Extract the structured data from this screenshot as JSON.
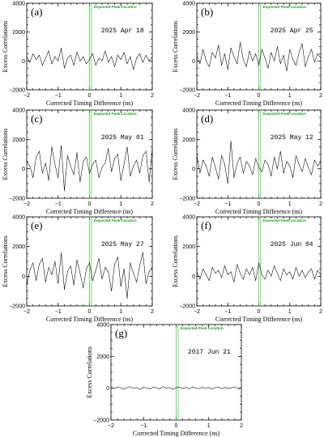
{
  "chart_data": [
    {
      "type": "line",
      "panel": "(a)",
      "date": "2025 Apr 18",
      "xlabel": "Corrected Timing Difference (ns)",
      "ylabel": "Excess Correlations",
      "xlim": [
        -2,
        2
      ],
      "ylim": [
        -2000,
        4000
      ],
      "xticks": [
        -2,
        -1,
        0,
        1,
        2
      ],
      "yticks": [
        -2000,
        0,
        2000,
        4000
      ],
      "annotation": "Expected Peak Location",
      "peak_x": [
        0.0,
        0.06
      ],
      "x": [
        -2.0,
        -1.9,
        -1.8,
        -1.7,
        -1.6,
        -1.5,
        -1.4,
        -1.3,
        -1.2,
        -1.1,
        -1.0,
        -0.9,
        -0.8,
        -0.7,
        -0.6,
        -0.5,
        -0.4,
        -0.3,
        -0.2,
        -0.1,
        0.0,
        0.1,
        0.2,
        0.3,
        0.4,
        0.5,
        0.6,
        0.7,
        0.8,
        0.9,
        1.0,
        1.1,
        1.2,
        1.3,
        1.4,
        1.5,
        1.6,
        1.7,
        1.8,
        1.9,
        2.0
      ],
      "y": [
        300,
        -100,
        500,
        100,
        400,
        -300,
        200,
        700,
        -200,
        300,
        0,
        900,
        -500,
        200,
        400,
        -300,
        600,
        0,
        300,
        -200,
        100,
        500,
        -300,
        200,
        0,
        700,
        -100,
        300,
        -400,
        400,
        100,
        600,
        -200,
        300,
        -600,
        200,
        500,
        -100,
        400,
        0,
        300
      ]
    },
    {
      "type": "line",
      "panel": "(b)",
      "date": "2025 Apr 25",
      "xlabel": "Corrected Timing Difference (ns)",
      "ylabel": "Excess Correlations",
      "xlim": [
        -2,
        2
      ],
      "ylim": [
        -2000,
        4000
      ],
      "xticks": [
        -2,
        -1,
        0,
        1,
        2
      ],
      "yticks": [
        -2000,
        0,
        2000,
        4000
      ],
      "annotation": "Expected Peak Location",
      "peak_x": [
        0.0,
        0.06
      ],
      "x": [
        -2.0,
        -1.9,
        -1.8,
        -1.7,
        -1.6,
        -1.5,
        -1.4,
        -1.3,
        -1.2,
        -1.1,
        -1.0,
        -0.9,
        -0.8,
        -0.7,
        -0.6,
        -0.5,
        -0.4,
        -0.3,
        -0.2,
        -0.1,
        0.0,
        0.1,
        0.2,
        0.3,
        0.4,
        0.5,
        0.6,
        0.7,
        0.8,
        0.9,
        1.0,
        1.1,
        1.2,
        1.3,
        1.4,
        1.5,
        1.6,
        1.7,
        1.8,
        1.9,
        2.0
      ],
      "y": [
        400,
        -200,
        800,
        0,
        -400,
        600,
        200,
        1100,
        -300,
        500,
        -600,
        900,
        300,
        -200,
        1300,
        100,
        -400,
        700,
        0,
        500,
        -300,
        800,
        200,
        -500,
        600,
        0,
        1000,
        -200,
        400,
        -700,
        800,
        100,
        -300,
        600,
        1200,
        -400,
        300,
        800,
        -100,
        500,
        200
      ]
    },
    {
      "type": "line",
      "panel": "(c)",
      "date": "2025 May 01",
      "xlabel": "Corrected Timing Difference (ns)",
      "ylabel": "Excess Correlations",
      "xlim": [
        -2,
        2
      ],
      "ylim": [
        -2000,
        4000
      ],
      "xticks": [
        -2,
        -1,
        0,
        1,
        2
      ],
      "yticks": [
        -2000,
        0,
        2000,
        4000
      ],
      "annotation": "Expected Peak Location",
      "peak_x": [
        0.0,
        0.06
      ],
      "x": [
        -2.0,
        -1.9,
        -1.8,
        -1.7,
        -1.6,
        -1.5,
        -1.4,
        -1.3,
        -1.2,
        -1.1,
        -1.0,
        -0.9,
        -0.8,
        -0.7,
        -0.6,
        -0.5,
        -0.4,
        -0.3,
        -0.2,
        -0.1,
        0.0,
        0.1,
        0.2,
        0.3,
        0.4,
        0.5,
        0.6,
        0.7,
        0.8,
        0.9,
        1.0,
        1.1,
        1.2,
        1.3,
        1.4,
        1.5,
        1.6,
        1.7,
        1.8,
        1.9,
        2.0
      ],
      "y": [
        500,
        200,
        -600,
        800,
        1200,
        -300,
        400,
        -800,
        1500,
        300,
        -600,
        1600,
        -1500,
        900,
        200,
        -400,
        1100,
        -900,
        500,
        800,
        -300,
        300,
        600,
        -600,
        100,
        400,
        1400,
        -200,
        700,
        1000,
        -800,
        300,
        1500,
        -500,
        200,
        600,
        -300,
        900,
        1200,
        -900,
        1400
      ]
    },
    {
      "type": "line",
      "panel": "(d)",
      "date": "2025 May 12",
      "xlabel": "Corrected Timing Difference (ns)",
      "ylabel": "Excess Correlations",
      "xlim": [
        -2,
        2
      ],
      "ylim": [
        -2000,
        4000
      ],
      "xticks": [
        -2,
        -1,
        0,
        1,
        2
      ],
      "yticks": [
        -2000,
        0,
        2000,
        4000
      ],
      "annotation": "Expected Peak Location",
      "peak_x": [
        0.0,
        0.06
      ],
      "x": [
        -2.0,
        -1.9,
        -1.8,
        -1.7,
        -1.6,
        -1.5,
        -1.4,
        -1.3,
        -1.2,
        -1.1,
        -1.0,
        -0.9,
        -0.8,
        -0.7,
        -0.6,
        -0.5,
        -0.4,
        -0.3,
        -0.2,
        -0.1,
        0.0,
        0.1,
        0.2,
        0.3,
        0.4,
        0.5,
        0.6,
        0.7,
        0.8,
        0.9,
        1.0,
        1.1,
        1.2,
        1.3,
        1.4,
        1.5,
        1.6,
        1.7,
        1.8,
        1.9,
        2.0
      ],
      "y": [
        1000,
        -300,
        600,
        200,
        -500,
        800,
        100,
        -700,
        900,
        300,
        -1000,
        1900,
        -600,
        400,
        800,
        -300,
        500,
        200,
        -400,
        700,
        100,
        -200,
        600,
        300,
        -500,
        800,
        0,
        1200,
        -300,
        500,
        200,
        -600,
        900,
        300,
        -200,
        700,
        100,
        -400,
        600,
        200,
        500
      ]
    },
    {
      "type": "line",
      "panel": "(e)",
      "date": "2025 May 27",
      "xlabel": "Corrected Timing Difference (ns)",
      "ylabel": "Excess Correlations",
      "xlim": [
        -2,
        2
      ],
      "ylim": [
        -2000,
        4000
      ],
      "xticks": [
        -2,
        -1,
        0,
        1,
        2
      ],
      "yticks": [
        -2000,
        0,
        2000,
        4000
      ],
      "annotation": "Expected Peak Location",
      "peak_x": [
        0.0,
        0.06
      ],
      "x": [
        -2.0,
        -1.9,
        -1.8,
        -1.7,
        -1.6,
        -1.5,
        -1.4,
        -1.3,
        -1.2,
        -1.1,
        -1.0,
        -0.9,
        -0.8,
        -0.7,
        -0.6,
        -0.5,
        -0.4,
        -0.3,
        -0.2,
        -0.1,
        0.0,
        0.1,
        0.2,
        0.3,
        0.4,
        0.5,
        0.6,
        0.7,
        0.8,
        0.9,
        1.0,
        1.1,
        1.2,
        1.3,
        1.4,
        1.5,
        1.6,
        1.7,
        1.8,
        1.9,
        2.0
      ],
      "y": [
        -600,
        400,
        900,
        -300,
        800,
        1200,
        -400,
        600,
        100,
        1000,
        -500,
        1600,
        -900,
        300,
        700,
        -600,
        1100,
        200,
        -800,
        500,
        900,
        -300,
        400,
        1200,
        -200,
        600,
        300,
        -1000,
        800,
        1300,
        -700,
        500,
        -1500,
        900,
        200,
        -400,
        700,
        1600,
        -500,
        300,
        600
      ]
    },
    {
      "type": "line",
      "panel": "(f)",
      "date": "2025 Jun 04",
      "xlabel": "Corrected Timing Difference (ns)",
      "ylabel": "Excess Correlations",
      "xlim": [
        -2,
        2
      ],
      "ylim": [
        -2000,
        4000
      ],
      "xticks": [
        -2,
        -1,
        0,
        1,
        2
      ],
      "yticks": [
        -2000,
        0,
        2000,
        4000
      ],
      "annotation": "Expected Peak Location",
      "peak_x": [
        0.0,
        0.06
      ],
      "x": [
        -2.0,
        -1.9,
        -1.8,
        -1.7,
        -1.6,
        -1.5,
        -1.4,
        -1.3,
        -1.2,
        -1.1,
        -1.0,
        -0.9,
        -0.8,
        -0.7,
        -0.6,
        -0.5,
        -0.4,
        -0.3,
        -0.2,
        -0.1,
        0.0,
        0.1,
        0.2,
        0.3,
        0.4,
        0.5,
        0.6,
        0.7,
        0.8,
        0.9,
        1.0,
        1.1,
        1.2,
        1.3,
        1.4,
        1.5,
        1.6,
        1.7,
        1.8,
        1.9,
        2.0
      ],
      "y": [
        300,
        -200,
        500,
        100,
        -300,
        600,
        200,
        400,
        -100,
        700,
        100,
        300,
        -400,
        800,
        200,
        -200,
        500,
        100,
        600,
        -300,
        900,
        100,
        -200,
        400,
        0,
        700,
        200,
        -300,
        500,
        100,
        300,
        -200,
        600,
        0,
        400,
        -100,
        300,
        500,
        -200,
        400,
        100
      ]
    },
    {
      "type": "line",
      "panel": "(g)",
      "date": "2017 Jun 21",
      "xlabel": "Corrected Timing Difference (ns)",
      "ylabel": "Excess Correlations",
      "xlim": [
        -2,
        2
      ],
      "ylim": [
        -2000,
        4000
      ],
      "xticks": [
        -2,
        -1,
        0,
        1,
        2
      ],
      "yticks": [
        -2000,
        0,
        2000,
        4000
      ],
      "annotation": "Expected Peak Location",
      "peak_x": [
        0.0,
        0.06
      ],
      "x": [
        -2.0,
        -1.9,
        -1.8,
        -1.7,
        -1.6,
        -1.5,
        -1.4,
        -1.3,
        -1.2,
        -1.1,
        -1.0,
        -0.9,
        -0.8,
        -0.7,
        -0.6,
        -0.5,
        -0.4,
        -0.3,
        -0.2,
        -0.1,
        0.0,
        0.1,
        0.2,
        0.3,
        0.4,
        0.5,
        0.6,
        0.7,
        0.8,
        0.9,
        1.0,
        1.1,
        1.2,
        1.3,
        1.4,
        1.5,
        1.6,
        1.7,
        1.8,
        1.9,
        2.0
      ],
      "y": [
        50,
        -30,
        80,
        10,
        -60,
        40,
        90,
        -20,
        30,
        -80,
        60,
        0,
        -40,
        70,
        20,
        -50,
        100,
        -10,
        40,
        -70,
        30,
        60,
        -20,
        50,
        -40,
        80,
        10,
        -30,
        60,
        -10,
        40,
        -60,
        20,
        70,
        -30,
        50,
        -20,
        30,
        80,
        -40,
        20
      ]
    }
  ]
}
